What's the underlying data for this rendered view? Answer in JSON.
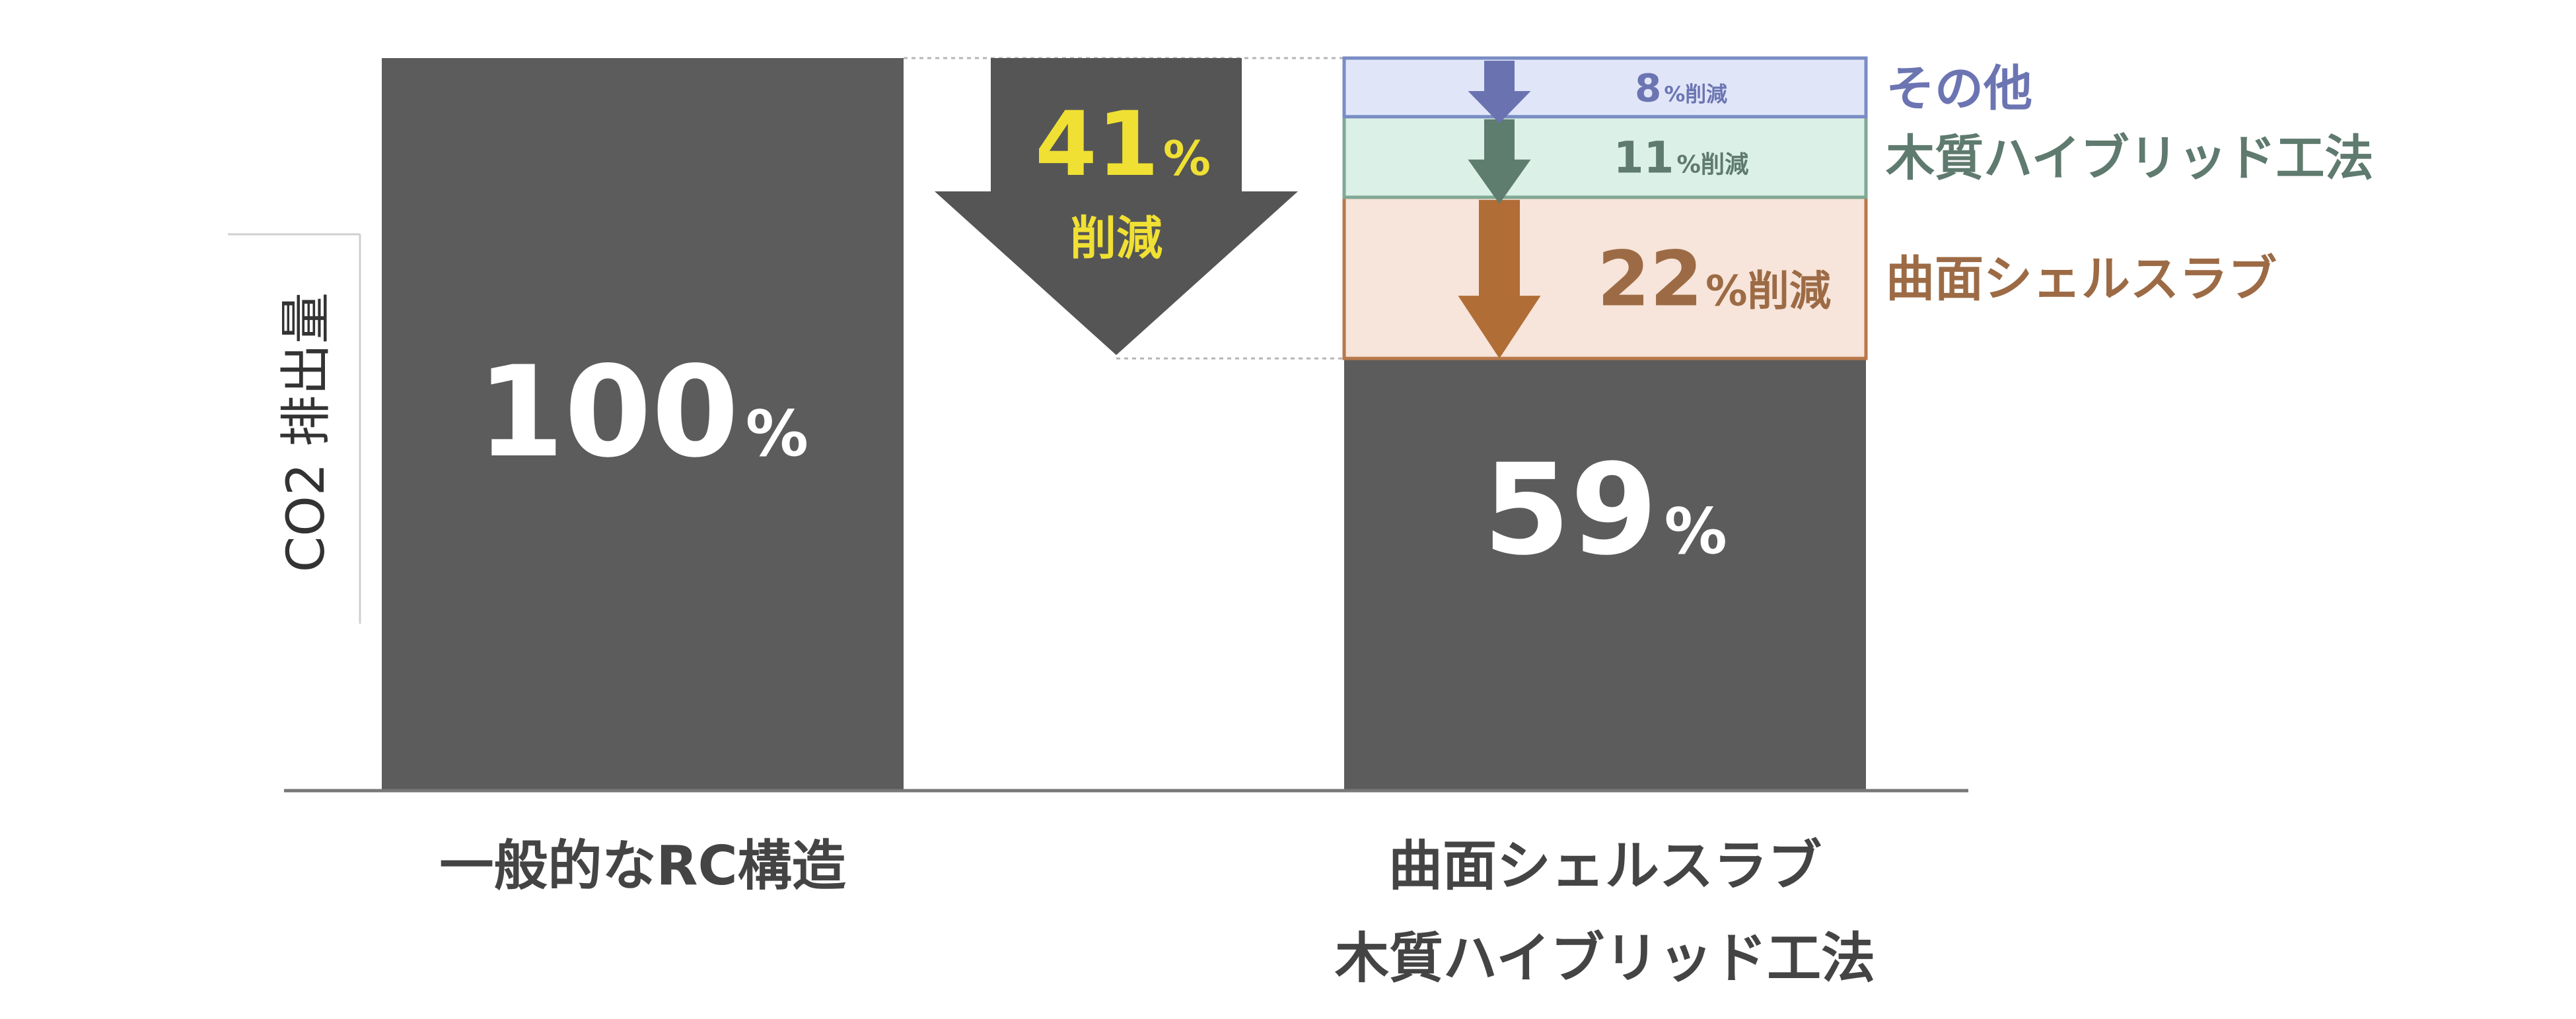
{
  "chart_data": {
    "type": "bar",
    "ylabel": "CO2 排出量",
    "ylim": [
      0,
      100
    ],
    "percent_unit": "%",
    "categories": [
      {
        "lines": [
          "一般的なRC構造"
        ],
        "value": 100
      },
      {
        "lines": [
          "曲面シェルスラブ",
          "木質ハイブリッド工法"
        ],
        "value": 59
      }
    ],
    "total_reduction": {
      "value": 41,
      "text": "削減"
    },
    "reductions": [
      {
        "name": "曲面シェルスラブ",
        "value": 22,
        "text": "削減",
        "fill": "#f7e4da",
        "stroke": "#b8784a",
        "arrow": "#b06d36",
        "label_color": "#9c6b45"
      },
      {
        "name": "木質ハイブリッド工法",
        "value": 11,
        "text": "削減",
        "fill": "#dbf0e6",
        "stroke": "#7fa895",
        "arrow": "#5e7d6e",
        "label_color": "#5f7a6e"
      },
      {
        "name": "その他",
        "value": 8,
        "text": "削減",
        "fill": "#e0e6f8",
        "stroke": "#7a8cc4",
        "arrow": "#6a72b0",
        "label_color": "#6c75b2"
      }
    ],
    "colors": {
      "bar": "#5c5c5c",
      "value_label": "#ffffff",
      "total_arrow": "#555555",
      "highlight": "#f0e033",
      "axis": "#777777",
      "category_label": "#444444",
      "ylabel": "#333333"
    }
  }
}
